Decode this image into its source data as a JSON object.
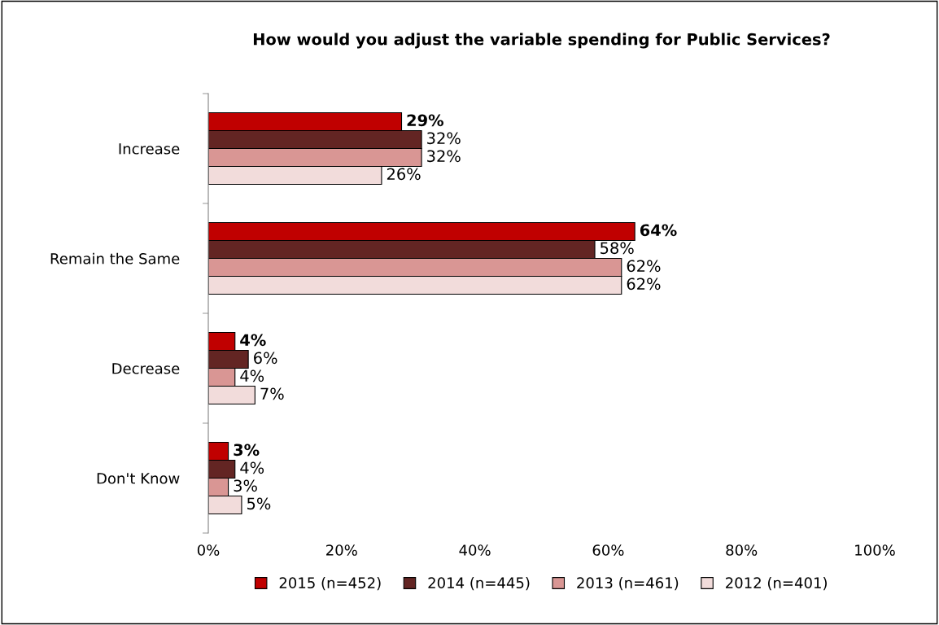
{
  "chart_data": {
    "type": "bar",
    "orientation": "horizontal",
    "title": "How would you adjust the variable spending for Public Services?",
    "categories": [
      "Increase",
      "Remain the Same",
      "Decrease",
      "Don't Know"
    ],
    "series": [
      {
        "name": "2015 (n=452)",
        "color": "#c00000",
        "values": [
          29,
          64,
          4,
          3
        ],
        "value_labels": [
          "29%",
          "64%",
          "4%",
          "3%"
        ]
      },
      {
        "name": "2014 (n=445)",
        "color": "#632523",
        "values": [
          32,
          58,
          6,
          4
        ],
        "value_labels": [
          "32%",
          "58%",
          "6%",
          "4%"
        ]
      },
      {
        "name": "2013 (n=461)",
        "color": "#d99694",
        "values": [
          32,
          62,
          4,
          3
        ],
        "value_labels": [
          "32%",
          "62%",
          "4%",
          "3%"
        ]
      },
      {
        "name": "2012 (n=401)",
        "color": "#f2dcdb",
        "values": [
          26,
          62,
          7,
          5
        ],
        "value_labels": [
          "26%",
          "62%",
          "7%",
          "5%"
        ]
      }
    ],
    "xlim": [
      0,
      100
    ],
    "xticks": [
      {
        "value": 0,
        "label": "0%"
      },
      {
        "value": 20,
        "label": "20%"
      },
      {
        "value": 40,
        "label": "40%"
      },
      {
        "value": 60,
        "label": "60%"
      },
      {
        "value": 80,
        "label": "80%"
      },
      {
        "value": 100,
        "label": "100%"
      }
    ],
    "grid": false,
    "legend": "bottom"
  }
}
